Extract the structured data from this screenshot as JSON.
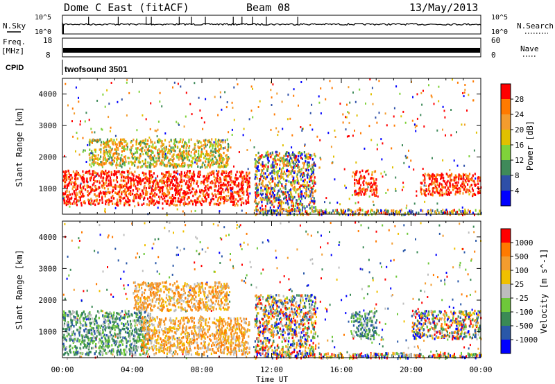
{
  "header": {
    "station": "Dome C East (fitACF)",
    "beam": "Beam 08",
    "date": "13/May/2013"
  },
  "status_panel": {
    "nsky_label": "N.Sky",
    "nsearch_label": "N.Search",
    "freq_label": "Freq.",
    "freq_unit": "[MHz]",
    "nave_label": "Nave",
    "cpid_label": "CPID",
    "cpid_text": "twofsound 3501",
    "noise_ticks": [
      "10^5",
      "10^0"
    ],
    "noise_ticks_right": [
      "10^5",
      "10^0"
    ],
    "freq_ticks": [
      "18",
      "8"
    ],
    "nave_ticks": [
      "60",
      "0"
    ]
  },
  "chart_data": [
    {
      "type": "heatmap",
      "title": "",
      "ylabel": "Slant Range [km]",
      "xlabel": "",
      "ylim": [
        180,
        4500
      ],
      "yticks": [
        "1000",
        "2000",
        "3000",
        "4000"
      ],
      "colorbar": {
        "label": "Power [dB]",
        "ticks": [
          "4",
          "8",
          "12",
          "16",
          "20",
          "24",
          "28"
        ],
        "colors": [
          "#0000ff",
          "#2e4fa8",
          "#3f8a5a",
          "#7fd23a",
          "#e0c000",
          "#f39c2e",
          "#ff7a00",
          "#ff0000"
        ]
      },
      "regions": [
        {
          "t0": 0.0,
          "t1": 10.7,
          "r0": 500,
          "r1": 1600,
          "level": "high"
        },
        {
          "t0": 1.5,
          "t1": 9.5,
          "r0": 1700,
          "r1": 2600,
          "level": "medium"
        },
        {
          "t0": 11.0,
          "t1": 14.5,
          "r0": 300,
          "r1": 2200,
          "level": "mixed"
        },
        {
          "t0": 16.7,
          "t1": 18.0,
          "r0": 800,
          "r1": 1600,
          "level": "high"
        },
        {
          "t0": 20.5,
          "t1": 24.0,
          "r0": 800,
          "r1": 1500,
          "level": "high"
        }
      ]
    },
    {
      "type": "heatmap",
      "title": "",
      "ylabel": "Slant Range [km]",
      "xlabel": "Time UT",
      "ylim": [
        180,
        4500
      ],
      "yticks": [
        "1000",
        "2000",
        "3000",
        "4000"
      ],
      "xticks": [
        "00:00",
        "04:00",
        "08:00",
        "12:00",
        "16:00",
        "20:00",
        "00:00"
      ],
      "colorbar": {
        "label": "Velocity [m s^-1]",
        "ticks": [
          "1000",
          "500",
          "100",
          "25",
          "-25",
          "-100",
          "-500",
          "-1000"
        ],
        "colors": [
          "#0000ff",
          "#2a58a8",
          "#3a8a55",
          "#6ec83a",
          "#bdbdbd",
          "#f0c000",
          "#f39c2e",
          "#ff7a00",
          "#ff0000"
        ]
      },
      "regions": [
        {
          "t0": 0.0,
          "t1": 5.0,
          "r0": 300,
          "r1": 1700,
          "level": "positive"
        },
        {
          "t0": 4.5,
          "t1": 10.7,
          "r0": 300,
          "r1": 1500,
          "level": "negative"
        },
        {
          "t0": 4.0,
          "t1": 9.5,
          "r0": 1700,
          "r1": 2600,
          "level": "negative"
        },
        {
          "t0": 11.0,
          "t1": 14.5,
          "r0": 300,
          "r1": 2200,
          "level": "mixed"
        },
        {
          "t0": 16.5,
          "t1": 18.0,
          "r0": 800,
          "r1": 1700,
          "level": "positive"
        },
        {
          "t0": 20.0,
          "t1": 24.0,
          "r0": 800,
          "r1": 1700,
          "level": "mixed"
        }
      ]
    }
  ]
}
